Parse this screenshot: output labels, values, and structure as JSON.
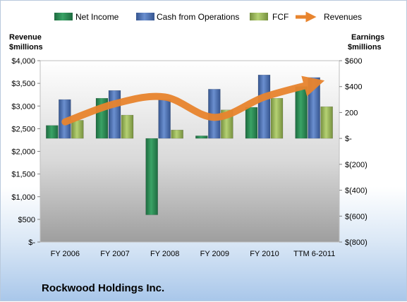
{
  "chart_data": {
    "type": "bar",
    "company": "Rockwood Holdings Inc.",
    "categories": [
      "FY 2006",
      "FY 2007",
      "FY 2008",
      "FY 2009",
      "FY 2010",
      "TTM 6-2011"
    ],
    "left_axis": {
      "title_line1": "Revenue",
      "title_line2": "$millions",
      "ylim": [
        0,
        4000
      ],
      "ticks": [
        "$-",
        "$500",
        "$1,000",
        "$1,500",
        "$2,000",
        "$2,500",
        "$3,000",
        "$3,500",
        "$4,000"
      ]
    },
    "right_axis": {
      "title_line1": "Earnings",
      "title_line2": "$millions",
      "ylim": [
        -800,
        600
      ],
      "ticks": [
        "$(800)",
        "$(600)",
        "$(400)",
        "$(200)",
        "$-",
        "200",
        "$400",
        "$600"
      ]
    },
    "series": [
      {
        "name": "Net Income",
        "axis": "right",
        "color": "#2f8a57",
        "values": [
          100,
          310,
          -590,
          20,
          240,
          400
        ]
      },
      {
        "name": "Cash from Operations",
        "axis": "right",
        "color": "#4f74b8",
        "values": [
          300,
          370,
          300,
          380,
          490,
          470
        ]
      },
      {
        "name": "FCF",
        "axis": "right",
        "color": "#9bbb59",
        "values": [
          140,
          180,
          65,
          220,
          310,
          245
        ]
      },
      {
        "name": "Revenues",
        "axis": "left",
        "type": "line",
        "color": "#e8842e",
        "values": [
          2650,
          3050,
          3200,
          2750,
          3200,
          3500
        ]
      }
    ],
    "legend_position": "top",
    "grid": false
  }
}
